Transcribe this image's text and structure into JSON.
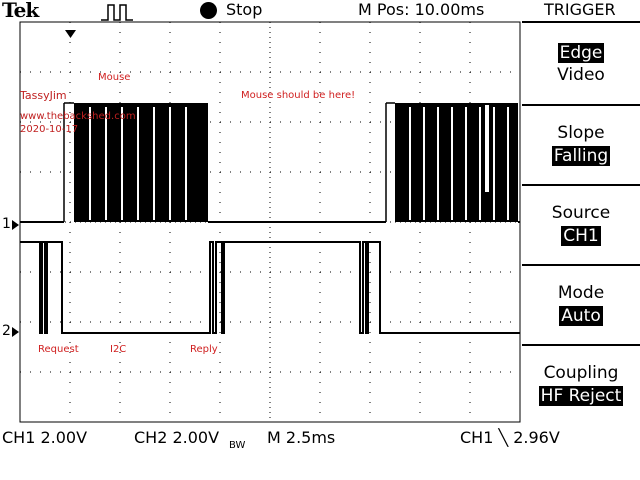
{
  "header": {
    "brand": "Tek",
    "acq_state": "Stop",
    "m_pos": "M Pos: 10.00ms",
    "trigger_title": "TRIGGER"
  },
  "menu": [
    {
      "label": "Edge",
      "value": "Video",
      "label_inverted": true
    },
    {
      "label": "Slope",
      "value": "Falling"
    },
    {
      "label": "Source",
      "value": "CH1"
    },
    {
      "label": "Mode",
      "value": "Auto"
    },
    {
      "label": "Coupling",
      "value": "HF Reject"
    }
  ],
  "annotations": {
    "mouse": "Mouse",
    "mouse_should": "Mouse should be here!",
    "request": "Request",
    "i2c": "I2C",
    "reply": "Reply"
  },
  "watermark": {
    "name": "TassyJim",
    "site": "www.thebackshed.com",
    "date": "2020-10-17"
  },
  "markers": {
    "ch1": "1",
    "ch2": "2"
  },
  "footer": {
    "ch1_scale": "CH1  2.00V",
    "ch2_scale": "CH2  2.00V",
    "bw_mark": "BW",
    "timebase": "M 2.5ms",
    "trigger": "CH1 ╲ 2.96V"
  },
  "colors": {
    "trace": "#000000",
    "annotation": "#d02020",
    "grid": "#000000"
  }
}
